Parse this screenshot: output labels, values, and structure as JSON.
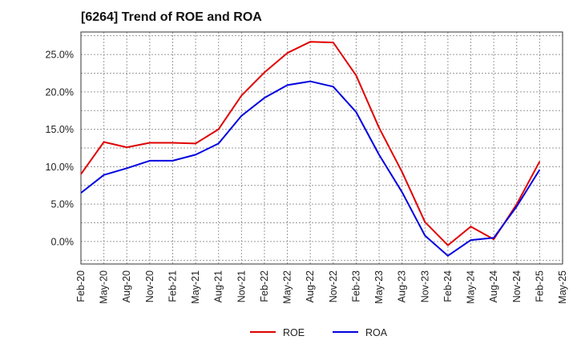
{
  "chart_data": {
    "type": "line",
    "title": "[6264]  Trend of ROE and ROA",
    "xlabel": "",
    "ylabel": "",
    "categories": [
      "Feb-20",
      "May-20",
      "Aug-20",
      "Nov-20",
      "Feb-21",
      "May-21",
      "Aug-21",
      "Nov-21",
      "Feb-22",
      "May-22",
      "Aug-22",
      "Nov-22",
      "Feb-23",
      "May-23",
      "Aug-23",
      "Nov-23",
      "Feb-24",
      "May-24",
      "Aug-24",
      "Nov-24",
      "Feb-25",
      "May-25"
    ],
    "yticks": [
      "0.0%",
      "5.0%",
      "10.0%",
      "15.0%",
      "20.0%",
      "25.0%"
    ],
    "ylim": [
      -3.0,
      28.0
    ],
    "grid": true,
    "legend": "bottom-center",
    "series": [
      {
        "name": "ROE",
        "color": "#e00000",
        "values": [
          9.0,
          13.3,
          12.6,
          13.2,
          13.2,
          13.1,
          15.0,
          19.5,
          22.6,
          25.2,
          26.7,
          26.6,
          22.2,
          15.2,
          9.3,
          2.6,
          -0.5,
          2.0,
          0.3,
          5.0,
          10.7,
          null
        ]
      },
      {
        "name": "ROA",
        "color": "#0000e0",
        "values": [
          6.5,
          8.9,
          9.8,
          10.8,
          10.8,
          11.6,
          13.1,
          16.8,
          19.2,
          20.9,
          21.4,
          20.7,
          17.3,
          11.6,
          6.6,
          0.8,
          -1.9,
          0.2,
          0.5,
          4.7,
          9.6,
          null
        ]
      }
    ]
  }
}
